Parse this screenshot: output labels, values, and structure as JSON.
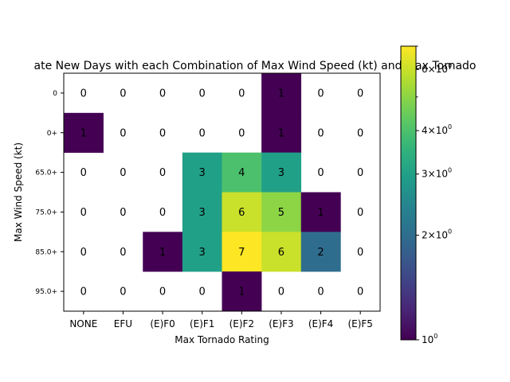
{
  "chart_data": {
    "type": "heatmap",
    "title": "ate New Days with each Combination of Max Wind Speed (kt) and Max Tornado",
    "xlabel": "Max Tornado Rating",
    "ylabel": "Max Wind Speed (kt)",
    "x_categories": [
      "NONE",
      "EFU",
      "(E)F0",
      "(E)F1",
      "(E)F2",
      "(E)F3",
      "(E)F4",
      "(E)F5"
    ],
    "y_categories": [
      "0",
      "0+",
      "65.0+",
      "75.0+",
      "85.0+",
      "95.0+"
    ],
    "values": [
      [
        0,
        0,
        0,
        0,
        0,
        1,
        0,
        0
      ],
      [
        1,
        0,
        0,
        0,
        0,
        1,
        0,
        0
      ],
      [
        0,
        0,
        0,
        3,
        4,
        3,
        0,
        0
      ],
      [
        0,
        0,
        0,
        3,
        6,
        5,
        1,
        0
      ],
      [
        0,
        0,
        1,
        3,
        7,
        6,
        2,
        0
      ],
      [
        0,
        0,
        0,
        0,
        1,
        0,
        0,
        0
      ]
    ],
    "color_scale": "viridis",
    "color_norm": "log",
    "color_range": [
      1,
      7
    ],
    "zero_cells_color": "#ffffff",
    "colorbar": {
      "tick_values": [
        1,
        2,
        3,
        4,
        6
      ],
      "tick_labels": [
        "10^0",
        "2×10^0",
        "3×10^0",
        "4×10^0",
        "6×10^0"
      ]
    },
    "grid": false
  }
}
